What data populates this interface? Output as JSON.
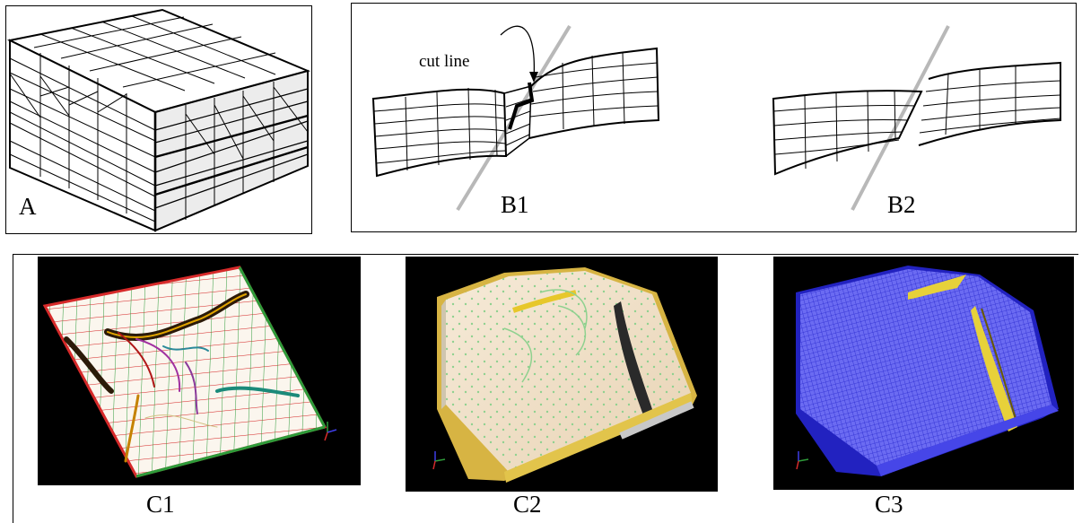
{
  "panel_a": {
    "label": "A"
  },
  "panel_b": {
    "label_b1": "B1",
    "label_b2": "B2",
    "annotation": "cut line"
  },
  "panel_c": {
    "label_c1": "C1",
    "label_c2": "C2",
    "label_c3": "C3"
  },
  "colors": {
    "grid_red": "#d62a2a",
    "grid_green": "#2e9b3a",
    "fault_yellow": "#e7c72a",
    "mesh_blue": "#3e3ee6",
    "cream": "#f3ead2"
  }
}
